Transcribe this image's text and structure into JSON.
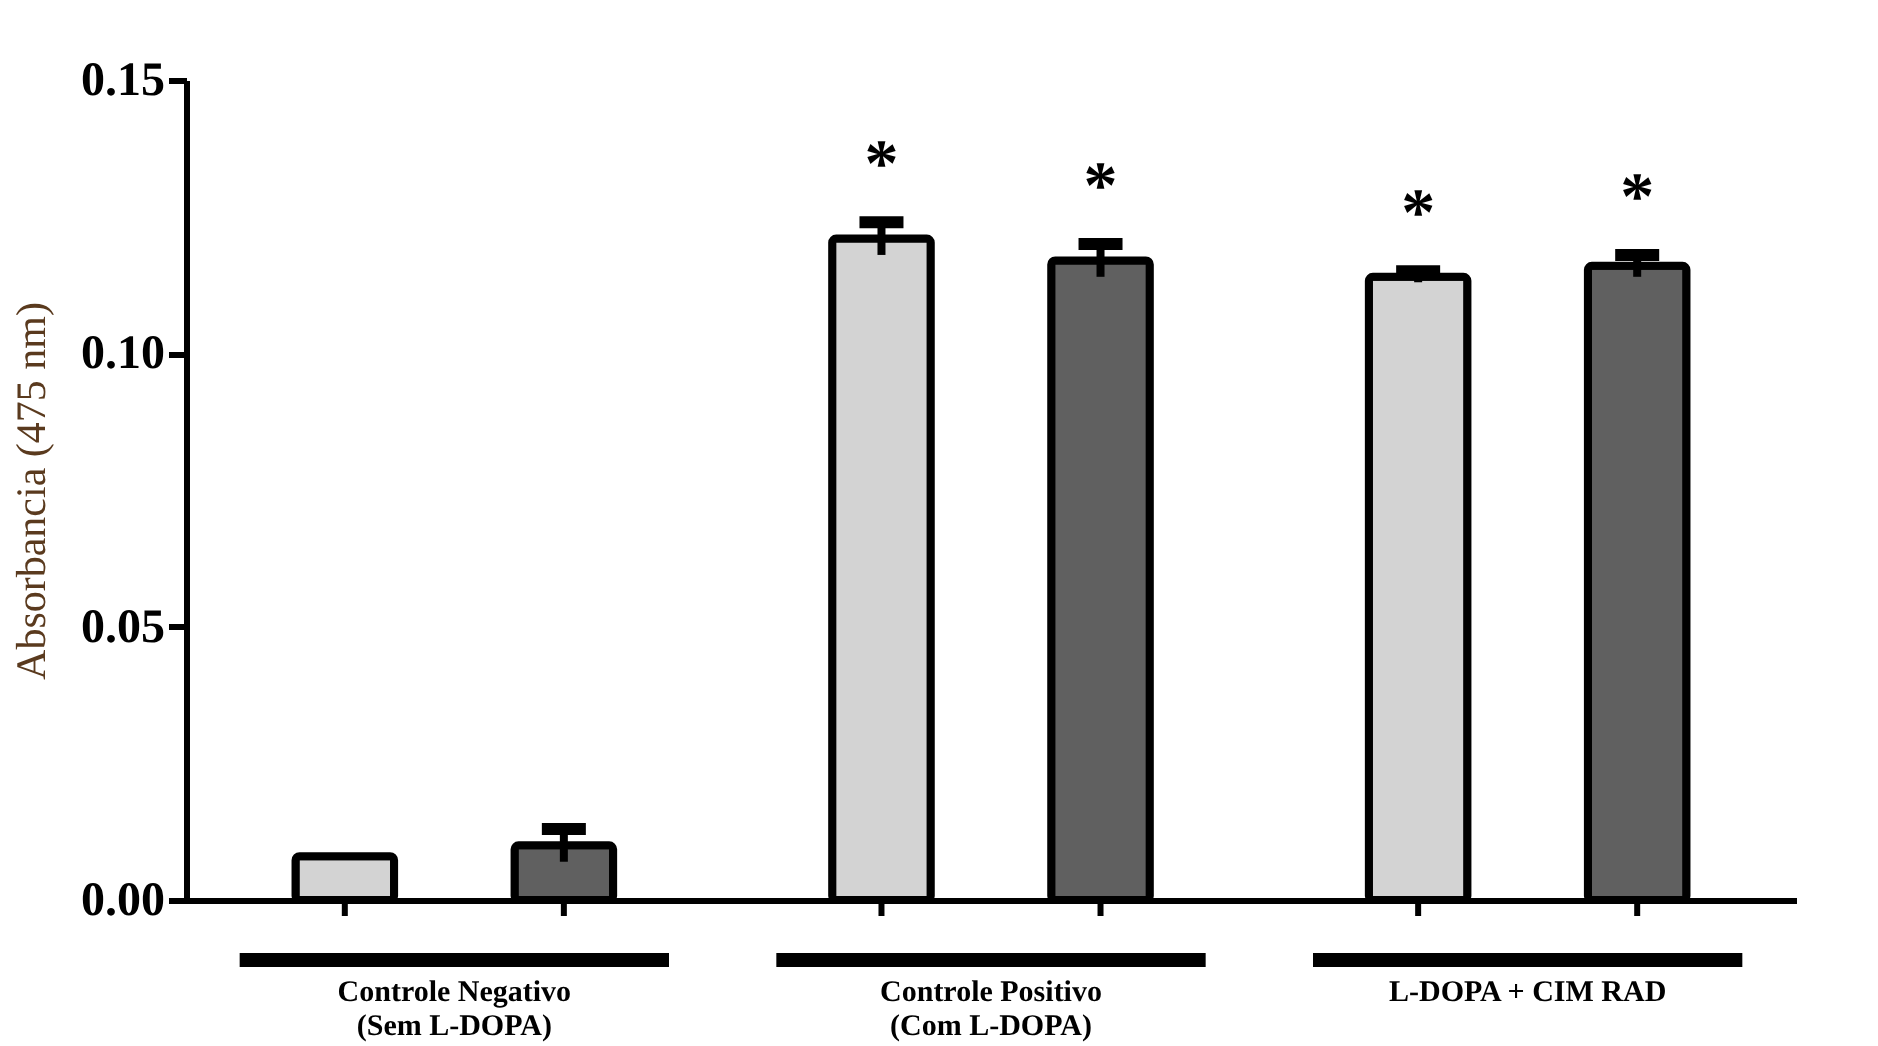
{
  "chart_data": {
    "type": "bar",
    "ylabel": "Absorbancia (475 nm)",
    "categories": [
      "Controle Negativo\n(Sem L-DOPA)",
      "Controle Positivo\n(Com L-DOPA)",
      "L-DOPA + CIM  RAD"
    ],
    "series": [
      {
        "color": "#d3d3d3",
        "values": [
          0.008,
          0.121,
          0.114
        ],
        "errors": [
          null,
          0.003,
          0.001
        ]
      },
      {
        "color": "#606060",
        "values": [
          0.01,
          0.117,
          0.116
        ],
        "errors": [
          0.003,
          0.003,
          0.002
        ]
      }
    ],
    "ylim": [
      0,
      0.15
    ],
    "yticks": [
      {
        "value": 0,
        "label": "0.00"
      },
      {
        "value": 0.05,
        "label": "0.05"
      },
      {
        "value": 0.1,
        "label": "0.10"
      },
      {
        "value": 0.15,
        "label": "0.15"
      }
    ],
    "grid": false,
    "legend": false,
    "annotations": [
      "*",
      "*",
      "*",
      "*"
    ]
  }
}
